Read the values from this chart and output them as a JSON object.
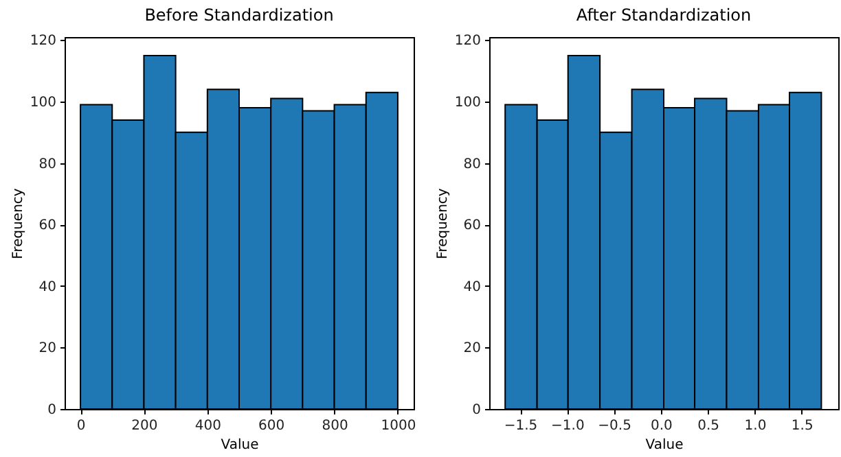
{
  "chart_data": [
    {
      "type": "histogram",
      "title": "Before Standardization",
      "xlabel": "Value",
      "ylabel": "Frequency",
      "color": "#1f77b4",
      "bins": [
        0,
        100,
        200,
        300,
        400,
        500,
        600,
        700,
        800,
        900,
        1000
      ],
      "values": [
        99,
        94,
        115,
        90,
        104,
        98,
        101,
        97,
        99,
        103
      ],
      "xlim": [
        -50,
        1050
      ],
      "xticks": [
        0,
        200,
        400,
        600,
        800,
        1000
      ],
      "ylim": [
        0,
        121
      ],
      "yticks": [
        0,
        20,
        40,
        60,
        80,
        100,
        120
      ],
      "grid": false
    },
    {
      "type": "histogram",
      "title": "After Standardization",
      "xlabel": "Value",
      "ylabel": "Frequency",
      "color": "#1f77b4",
      "bins": [
        -1.66,
        -1.32,
        -0.99,
        -0.65,
        -0.31,
        0.03,
        0.36,
        0.7,
        1.04,
        1.37,
        1.71
      ],
      "values": [
        99,
        94,
        115,
        90,
        104,
        98,
        101,
        97,
        99,
        103
      ],
      "xlim": [
        -1.83,
        1.89
      ],
      "xticks": [
        {
          "value": -1.5,
          "label": "−1.5"
        },
        {
          "value": -1.0,
          "label": "−1.0"
        },
        {
          "value": -0.5,
          "label": "−0.5"
        },
        {
          "value": 0,
          "label": "0.0"
        },
        {
          "value": 0.5,
          "label": "0.5"
        },
        {
          "value": 1.0,
          "label": "1.0"
        },
        {
          "value": 1.5,
          "label": "1.5"
        }
      ],
      "ylim": [
        0,
        121
      ],
      "yticks": [
        0,
        20,
        40,
        60,
        80,
        100,
        120
      ],
      "grid": false
    }
  ]
}
